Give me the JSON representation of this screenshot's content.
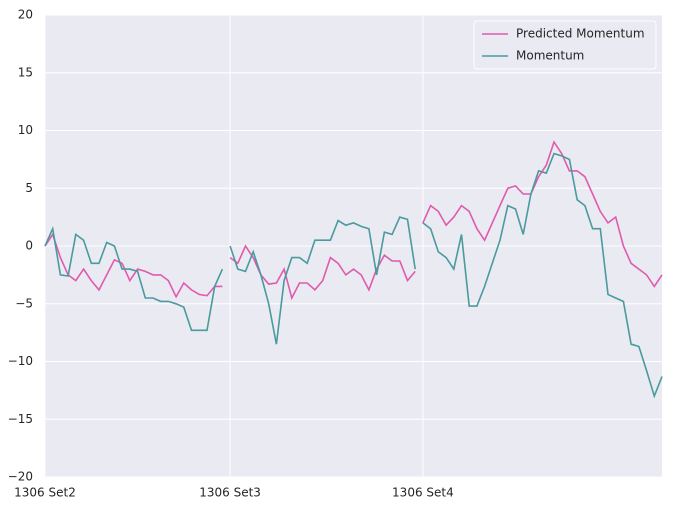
{
  "chart_data": {
    "type": "line",
    "x": [
      0,
      2,
      4,
      6,
      8,
      10,
      12,
      14,
      16,
      18,
      20,
      22,
      24,
      26,
      28,
      30,
      32,
      34,
      36,
      38,
      40,
      42,
      44,
      46,
      47,
      48,
      50,
      52,
      54,
      56,
      58,
      60,
      62,
      64,
      66,
      68,
      70,
      72,
      74,
      76,
      78,
      80,
      82,
      84,
      86,
      88,
      90,
      92,
      94,
      96,
      97,
      98,
      100,
      102,
      104,
      106,
      108,
      110,
      112,
      114,
      116,
      118,
      120,
      122,
      124,
      126,
      128,
      130,
      132,
      134,
      136,
      138,
      140,
      142,
      144,
      146,
      148,
      150,
      152,
      154,
      156,
      158,
      160
    ],
    "series": [
      {
        "name": "Predicted Momentum",
        "color": "#e05aae",
        "values": [
          0,
          1,
          -1,
          -2.5,
          -3,
          -2,
          -3,
          -3.8,
          -2.5,
          -1.2,
          -1.5,
          -3,
          -2,
          -2.2,
          -2.5,
          -2.5,
          -3,
          -4.4,
          -3.2,
          -3.8,
          -4.2,
          -4.3,
          -3.5,
          -3.5,
          null,
          -1,
          -1.5,
          0,
          -1,
          -2.5,
          -3.3,
          -3.2,
          -2,
          -4.5,
          -3.2,
          -3.2,
          -3.8,
          -3,
          -1,
          -1.5,
          -2.5,
          -2,
          -2.5,
          -3.8,
          -2,
          -0.8,
          -1.3,
          -1.3,
          -3,
          -2.2,
          null,
          2,
          3.5,
          3,
          1.8,
          2.5,
          3.5,
          3,
          1.5,
          0.5,
          2,
          3.5,
          5,
          5.2,
          4.5,
          4.5,
          6,
          7,
          9,
          8,
          6.5,
          6.5,
          6,
          4.5,
          3,
          2,
          2.5,
          0,
          -1.5,
          -2,
          -2.5,
          -3.5,
          -2.5
        ]
      },
      {
        "name": "Momentum",
        "color": "#4a9a9e",
        "values": [
          0,
          1.5,
          -2.5,
          -2.6,
          1,
          0.5,
          -1.5,
          -1.5,
          0.3,
          0,
          -2,
          -2,
          -2.2,
          -4.5,
          -4.5,
          -4.8,
          -4.8,
          -5,
          -5.3,
          -7.3,
          -7.3,
          -7.3,
          -3.5,
          -2,
          null,
          0,
          -2,
          -2.2,
          -0.5,
          -2.5,
          -5,
          -8.5,
          -3,
          -1,
          -1,
          -1.5,
          0.5,
          0.5,
          0.5,
          2.2,
          1.8,
          2,
          1.7,
          1.5,
          -2.5,
          1.2,
          1,
          2.5,
          2.3,
          -2,
          null,
          2,
          1.5,
          -0.5,
          -1,
          -2,
          1,
          -5.2,
          -5.2,
          -3.5,
          -1.5,
          0.5,
          3.5,
          3.2,
          1,
          4.5,
          6.5,
          6.3,
          8,
          7.8,
          7.5,
          4,
          3.5,
          1.5,
          1.5,
          -4.2,
          -4.5,
          -4.8,
          -8.5,
          -8.7,
          -10.8,
          -13,
          -11.3
        ]
      }
    ],
    "xlim": [
      0,
      160
    ],
    "xticks": [
      {
        "value": 0,
        "label": "1306 Set2"
      },
      {
        "value": 48,
        "label": "1306 Set3"
      },
      {
        "value": 98,
        "label": "1306 Set4"
      }
    ],
    "ylim": [
      -20,
      20
    ],
    "yticks": [
      {
        "value": -20,
        "label": "−20"
      },
      {
        "value": -15,
        "label": "−15"
      },
      {
        "value": -10,
        "label": "−10"
      },
      {
        "value": -5,
        "label": "−5"
      },
      0,
      5,
      10,
      15,
      20
    ],
    "grid": true,
    "legend": "upper right"
  }
}
